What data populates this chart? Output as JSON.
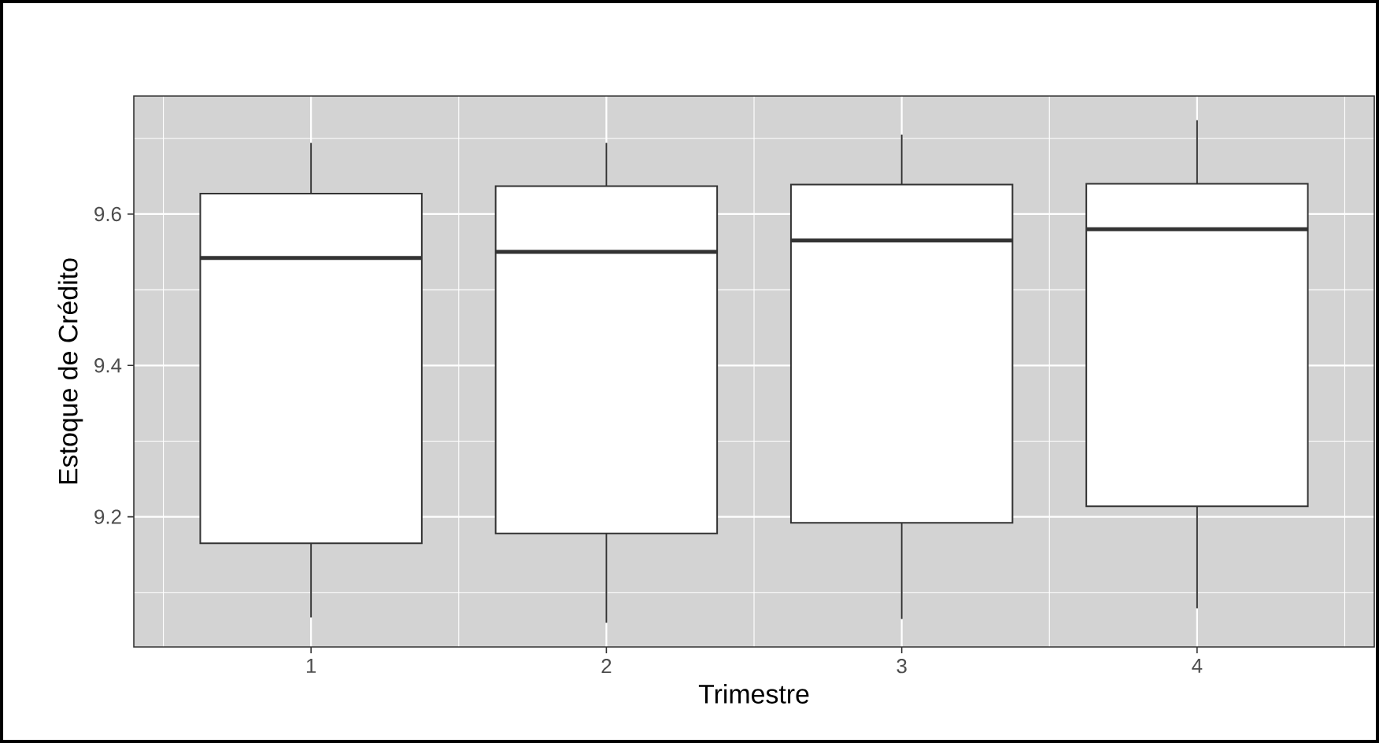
{
  "chart_data": {
    "type": "box",
    "xlabel": "Trimestre",
    "ylabel": "Estoque de Crédito",
    "categories": [
      "1",
      "2",
      "3",
      "4"
    ],
    "boxes": [
      {
        "low": 9.067,
        "q1": 9.165,
        "median": 9.542,
        "q3": 9.627,
        "high": 9.694
      },
      {
        "low": 9.06,
        "q1": 9.178,
        "median": 9.55,
        "q3": 9.637,
        "high": 9.694
      },
      {
        "low": 9.065,
        "q1": 9.192,
        "median": 9.565,
        "q3": 9.639,
        "high": 9.705
      },
      {
        "low": 9.079,
        "q1": 9.214,
        "median": 9.58,
        "q3": 9.64,
        "high": 9.724
      }
    ],
    "ylim": [
      9.028,
      9.756
    ],
    "yticks": [
      9.2,
      9.4,
      9.6
    ],
    "grid": true
  }
}
